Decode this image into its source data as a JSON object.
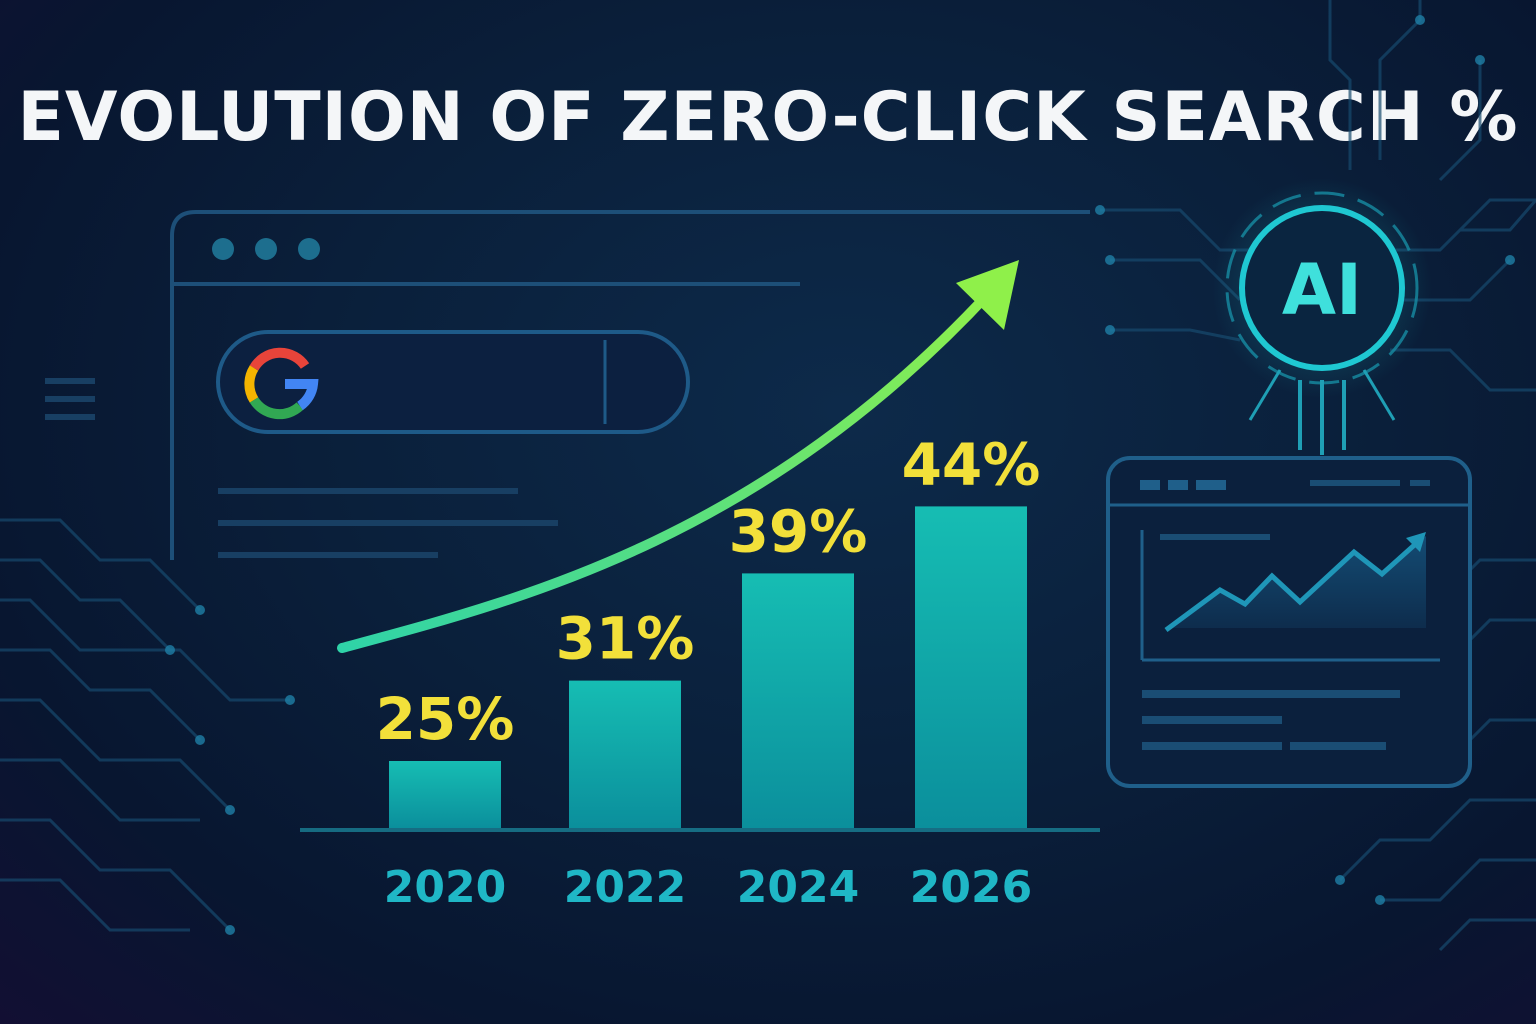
{
  "title": "EVOLUTION OF ZERO-CLICK SEARCH %",
  "search_logo": "G",
  "ai_badge": "AI",
  "colors": {
    "bar": "#14b5ad",
    "value_label": "#f2e03a",
    "year_label": "#1fb7c6",
    "trend_arrow_start": "#2fd3a8",
    "trend_arrow_end": "#8ff04a",
    "accent_cyan": "#21d0d6"
  },
  "icons": [
    "google-logo-icon",
    "ai-chip-icon",
    "trend-arrow-icon",
    "line-chart-icon"
  ],
  "chart_data": {
    "type": "bar",
    "title": "EVOLUTION OF ZERO-CLICK SEARCH %",
    "xlabel": "",
    "ylabel": "",
    "categories": [
      "2020",
      "2022",
      "2024",
      "2026"
    ],
    "values": [
      25,
      31,
      39,
      44
    ],
    "value_labels": [
      "25%",
      "31%",
      "39%",
      "44%"
    ],
    "ylim": [
      20,
      50
    ],
    "grid": false,
    "legend": "none",
    "trend_arrow": true
  }
}
